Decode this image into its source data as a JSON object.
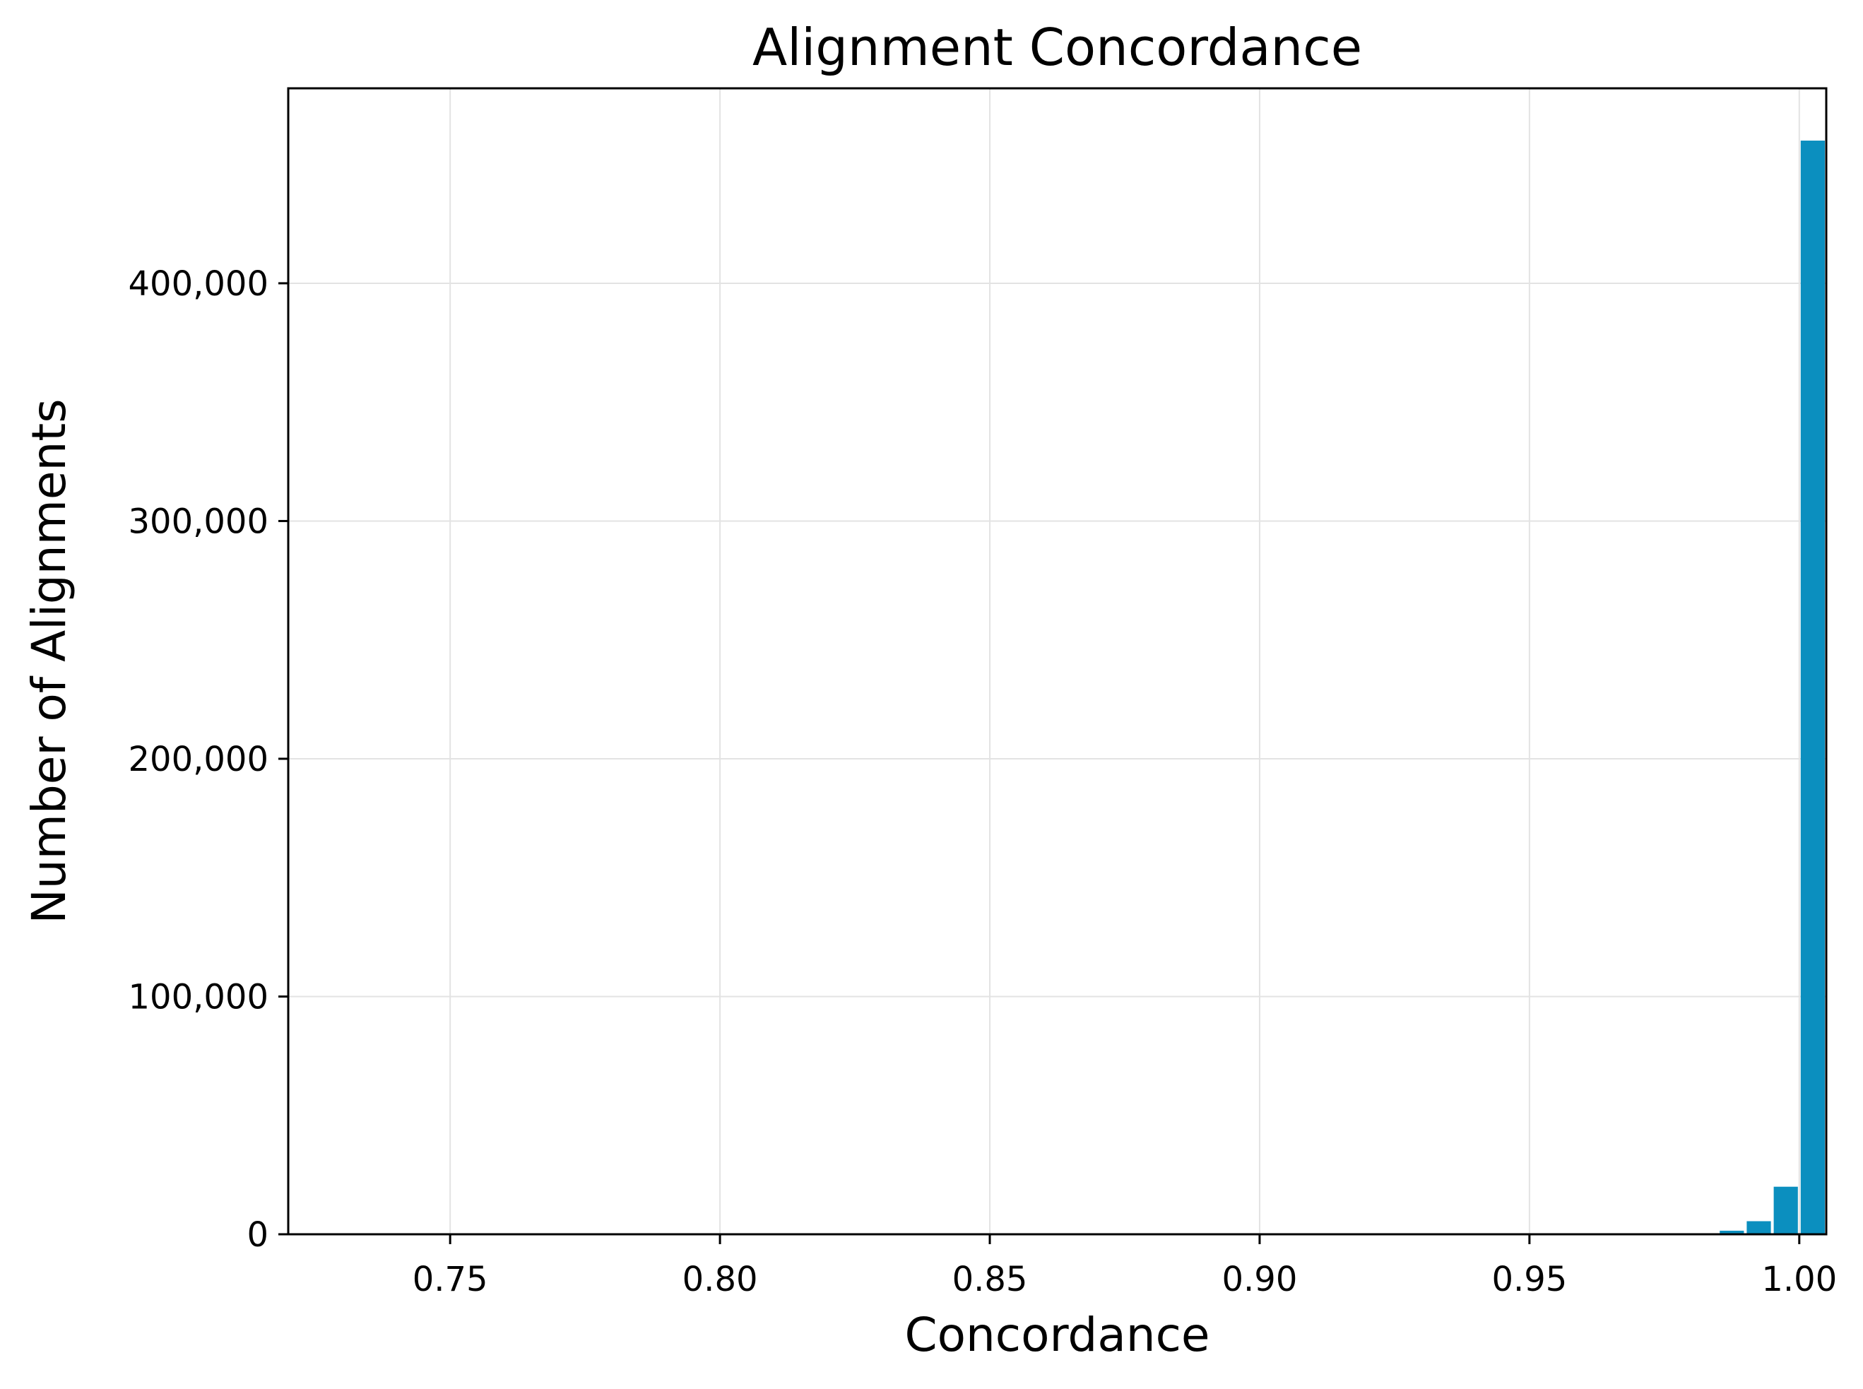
{
  "chart_data": {
    "type": "bar",
    "title": "Alignment Concordance",
    "xlabel": "Concordance",
    "ylabel": "Number of Alignments",
    "xlim": [
      0.72,
      1.005
    ],
    "ylim": [
      0,
      482000
    ],
    "grid": true,
    "bar_color": "#0b8fbf",
    "bin_width": 0.005,
    "x_ticks": [
      {
        "value": 0.75,
        "label": "0.75"
      },
      {
        "value": 0.8,
        "label": "0.80"
      },
      {
        "value": 0.85,
        "label": "0.85"
      },
      {
        "value": 0.9,
        "label": "0.90"
      },
      {
        "value": 0.95,
        "label": "0.95"
      },
      {
        "value": 1.0,
        "label": "1.00"
      }
    ],
    "y_ticks": [
      {
        "value": 0,
        "label": "0"
      },
      {
        "value": 100000,
        "label": "100,000"
      },
      {
        "value": 200000,
        "label": "200,000"
      },
      {
        "value": 300000,
        "label": "300,000"
      },
      {
        "value": 400000,
        "label": "400,000"
      }
    ],
    "bins": [
      {
        "start": 0.98,
        "end": 0.985,
        "count": 300
      },
      {
        "start": 0.985,
        "end": 0.99,
        "count": 1500
      },
      {
        "start": 0.99,
        "end": 0.995,
        "count": 5500
      },
      {
        "start": 0.995,
        "end": 1.0,
        "count": 20000
      },
      {
        "start": 1.0,
        "end": 1.005,
        "count": 460000
      }
    ]
  }
}
